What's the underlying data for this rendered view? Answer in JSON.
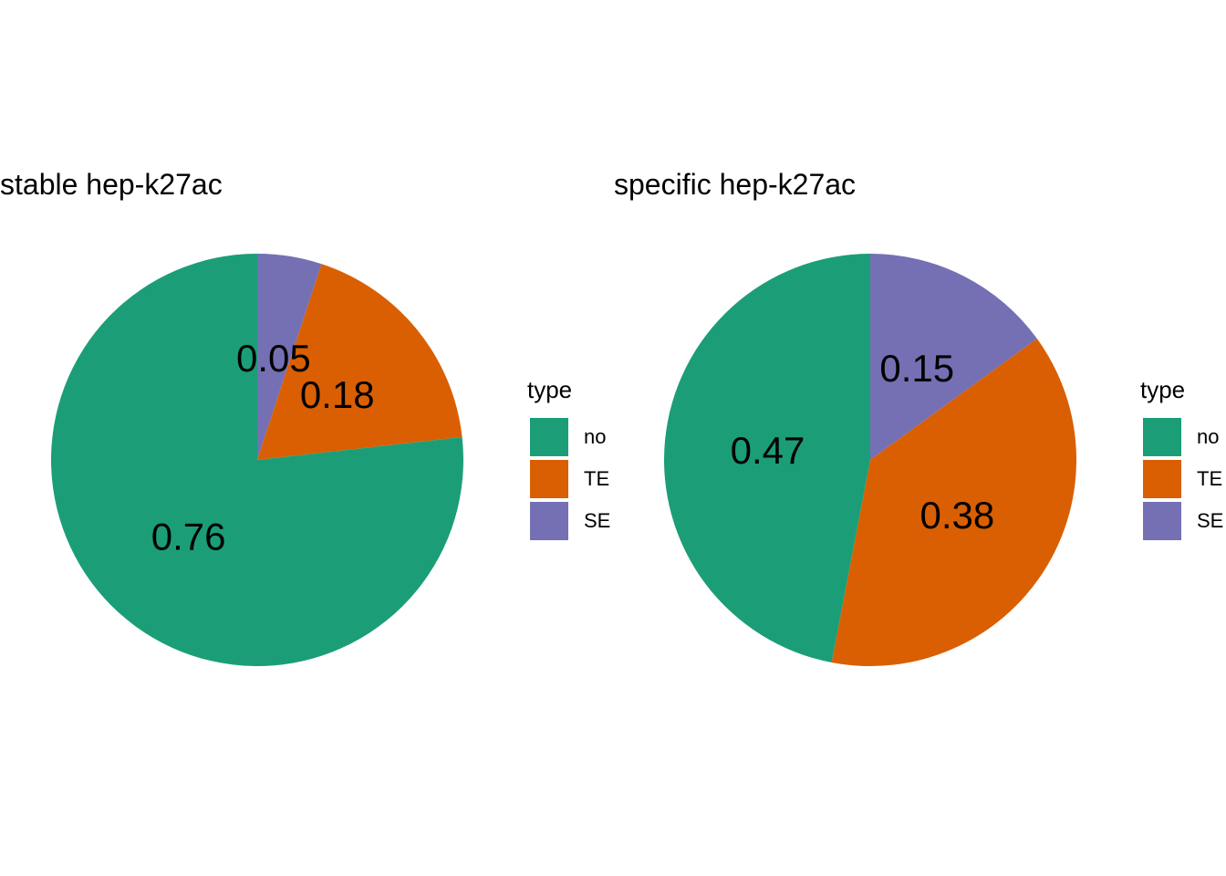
{
  "chart_data": [
    {
      "type": "pie",
      "title": "stable hep-k27ac",
      "legend": {
        "title": "type",
        "placement": "right"
      },
      "categories": [
        "no",
        "TE",
        "SE"
      ],
      "values": [
        0.76,
        0.18,
        0.05
      ],
      "labels": [
        "0.76",
        "0.18",
        "0.05"
      ],
      "colors": [
        "#1B9E77",
        "#D95F02",
        "#7570B3"
      ],
      "stack_order": [
        "SE",
        "TE",
        "no"
      ],
      "direction": "clockwise-from-top"
    },
    {
      "type": "pie",
      "title": "specific hep-k27ac",
      "legend": {
        "title": "type",
        "placement": "right"
      },
      "categories": [
        "no",
        "TE",
        "SE"
      ],
      "values": [
        0.47,
        0.38,
        0.15
      ],
      "labels": [
        "0.47",
        "0.38",
        "0.15"
      ],
      "colors": [
        "#1B9E77",
        "#D95F02",
        "#7570B3"
      ],
      "stack_order": [
        "SE",
        "TE",
        "no"
      ],
      "direction": "clockwise-from-top"
    }
  ]
}
